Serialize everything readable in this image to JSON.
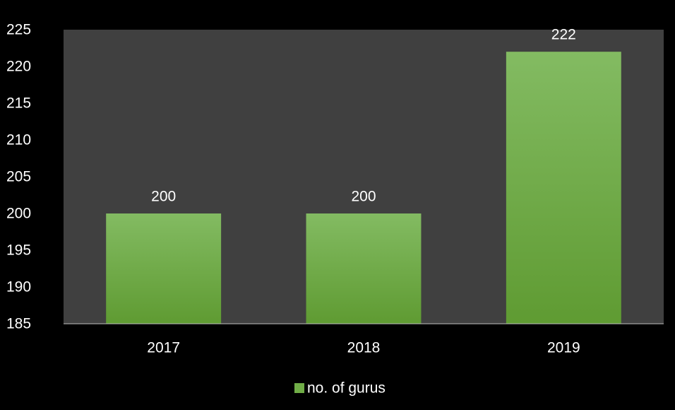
{
  "chart_data": {
    "type": "bar",
    "categories": [
      "2017",
      "2018",
      "2019"
    ],
    "series": [
      {
        "name": "no. of gurus",
        "values": [
          200,
          200,
          222
        ]
      }
    ],
    "data_labels": [
      "200",
      "200",
      "222"
    ],
    "title": "",
    "xlabel": "",
    "ylabel": "",
    "ylim": [
      185,
      225
    ],
    "yticks": [
      185,
      190,
      195,
      200,
      205,
      210,
      215,
      220,
      225
    ],
    "grid": false,
    "legend": "bottom-center"
  },
  "colors": {
    "page_background": "#000000",
    "plot_background": "#404040",
    "bar_top": "#83bb62",
    "bar_bottom": "#5f9b32",
    "legend_swatch": "#70ad47",
    "text": "#ffffff"
  }
}
